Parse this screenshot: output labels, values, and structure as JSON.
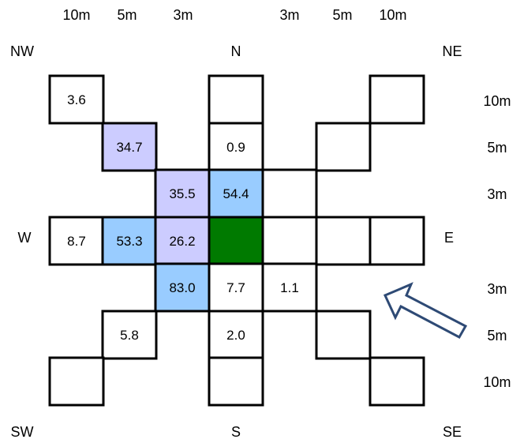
{
  "colors": {
    "cell_border": "#000000",
    "cell_default": "#ffffff",
    "center": "#007a00",
    "lavender": "#ccccff",
    "lightblue": "#99ccff",
    "arrow_stroke": "#2e4a75"
  },
  "labels": {
    "compass": {
      "nw": "NW",
      "n": "N",
      "ne": "NE",
      "w": "W",
      "e": "E",
      "sw": "SW",
      "s": "S",
      "se": "SE"
    },
    "top_distances": [
      "10m",
      "5m",
      "3m",
      "3m",
      "5m",
      "10m"
    ],
    "right_distances": [
      "10m",
      "5m",
      "3m",
      "3m",
      "5m",
      "10m"
    ]
  },
  "cells": [
    {
      "id": "nw-10",
      "value": "3.6",
      "fill": "white"
    },
    {
      "id": "n-10",
      "value": "",
      "fill": "white"
    },
    {
      "id": "ne-10",
      "value": "",
      "fill": "white"
    },
    {
      "id": "nw-5",
      "value": "34.7",
      "fill": "lavender"
    },
    {
      "id": "n-5",
      "value": "0.9",
      "fill": "white"
    },
    {
      "id": "ne-5",
      "value": "",
      "fill": "white"
    },
    {
      "id": "nw-3",
      "value": "35.5",
      "fill": "lavender"
    },
    {
      "id": "n-3",
      "value": "54.4",
      "fill": "lightblue"
    },
    {
      "id": "ne-3",
      "value": "",
      "fill": "white"
    },
    {
      "id": "w-10",
      "value": "8.7",
      "fill": "white"
    },
    {
      "id": "w-5",
      "value": "53.3",
      "fill": "lightblue"
    },
    {
      "id": "w-3",
      "value": "26.2",
      "fill": "lavender"
    },
    {
      "id": "center",
      "value": "",
      "fill": "center"
    },
    {
      "id": "e-3",
      "value": "",
      "fill": "white"
    },
    {
      "id": "e-5",
      "value": "",
      "fill": "white"
    },
    {
      "id": "e-10",
      "value": "",
      "fill": "white"
    },
    {
      "id": "sw-3",
      "value": "83.0",
      "fill": "lightblue"
    },
    {
      "id": "s-3",
      "value": "7.7",
      "fill": "white"
    },
    {
      "id": "se-3",
      "value": "1.1",
      "fill": "white"
    },
    {
      "id": "sw-5",
      "value": "5.8",
      "fill": "white"
    },
    {
      "id": "s-5",
      "value": "2.0",
      "fill": "white"
    },
    {
      "id": "se-5",
      "value": "",
      "fill": "white"
    },
    {
      "id": "sw-10",
      "value": "",
      "fill": "white"
    },
    {
      "id": "s-10",
      "value": "",
      "fill": "white"
    },
    {
      "id": "se-10",
      "value": "",
      "fill": "white"
    }
  ]
}
